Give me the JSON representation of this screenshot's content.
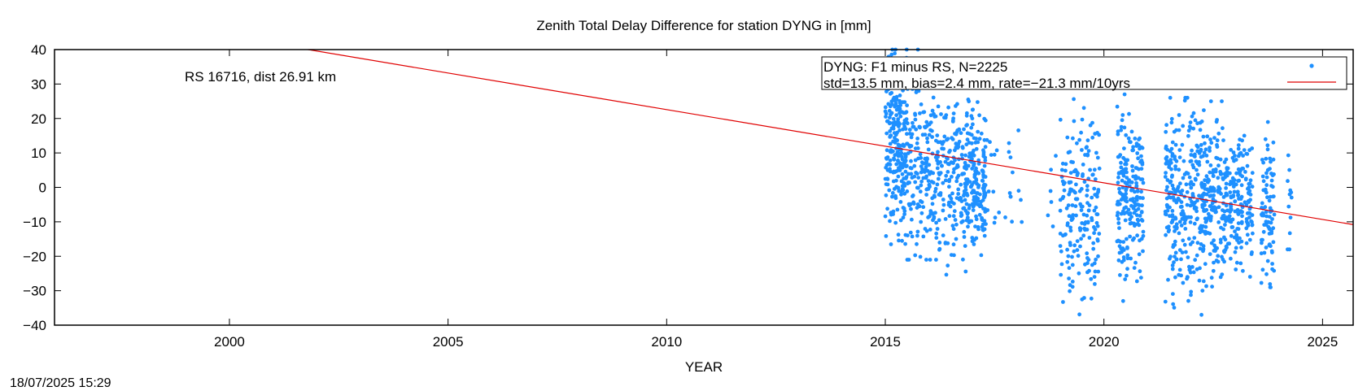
{
  "chart_data": {
    "type": "scatter",
    "title": "Zenith Total Delay Difference for station DYNG in [mm]",
    "xlabel": "YEAR",
    "ylabel": "",
    "xlim": [
      1996,
      2025.7
    ],
    "ylim": [
      -40,
      40
    ],
    "xticks": [
      2000,
      2005,
      2010,
      2015,
      2020,
      2025
    ],
    "yticks": [
      40,
      30,
      20,
      10,
      0,
      -10,
      -20,
      -30,
      -40
    ],
    "annotation": "RS 16716, dist 26.91 km",
    "grid": false,
    "legend_position": "top-right",
    "legend": [
      {
        "label": "DYNG: F1 minus RS, N=2225",
        "marker": "point",
        "color": "#1e90ff"
      },
      {
        "label": "std=13.5 mm, bias=2.4 mm, rate=−21.3 mm/10yrs",
        "marker": "line",
        "color": "#e00000"
      }
    ],
    "series": [
      {
        "name": "DYNG: F1 minus RS, N=2225",
        "kind": "points",
        "color": "#1e90ff",
        "clusters": [
          {
            "x": [
              2015.0,
              2015.5
            ],
            "y": [
              -20,
              40
            ],
            "center": 12,
            "n": 230
          },
          {
            "x": [
              2015.5,
              2016.2
            ],
            "y": [
              -21,
              40
            ],
            "center": 6,
            "n": 180
          },
          {
            "x": [
              2016.2,
              2016.9
            ],
            "y": [
              -27,
              38
            ],
            "center": 3,
            "n": 190
          },
          {
            "x": [
              2016.9,
              2017.3
            ],
            "y": [
              -22,
              25
            ],
            "center": 2,
            "n": 150
          },
          {
            "x": [
              2017.3,
              2017.8
            ],
            "y": [
              -17,
              25
            ],
            "center": 0,
            "n": 12
          },
          {
            "x": [
              2017.8,
              2018.3
            ],
            "y": [
              -17,
              18
            ],
            "center": 3,
            "n": 12
          },
          {
            "x": [
              2018.7,
              2018.9
            ],
            "y": [
              -15,
              15
            ],
            "center": 0,
            "n": 6
          },
          {
            "x": [
              2019.0,
              2019.9
            ],
            "y": [
              -40,
              27
            ],
            "center": -5,
            "n": 190
          },
          {
            "x": [
              2020.3,
              2020.9
            ],
            "y": [
              -33,
              27
            ],
            "center": -3,
            "n": 210
          },
          {
            "x": [
              2021.4,
              2022.1
            ],
            "y": [
              -36,
              26
            ],
            "center": -2,
            "n": 220
          },
          {
            "x": [
              2022.1,
              2022.8
            ],
            "y": [
              -37,
              25
            ],
            "center": -5,
            "n": 220
          },
          {
            "x": [
              2022.8,
              2023.4
            ],
            "y": [
              -27,
              15
            ],
            "center": -4,
            "n": 170
          },
          {
            "x": [
              2023.6,
              2023.9
            ],
            "y": [
              -29,
              23
            ],
            "center": -7,
            "n": 90
          },
          {
            "x": [
              2024.2,
              2024.3
            ],
            "y": [
              -18,
              23
            ],
            "center": -5,
            "n": 12
          }
        ]
      },
      {
        "name": "std=13.5 mm, bias=2.4 mm, rate=−21.3 mm/10yrs",
        "kind": "line",
        "color": "#e00000",
        "x": [
          2001.8,
          2025.7
        ],
        "y": [
          40,
          -10.8
        ]
      }
    ]
  },
  "footer": {
    "timestamp": "18/07/2025 15:29"
  }
}
